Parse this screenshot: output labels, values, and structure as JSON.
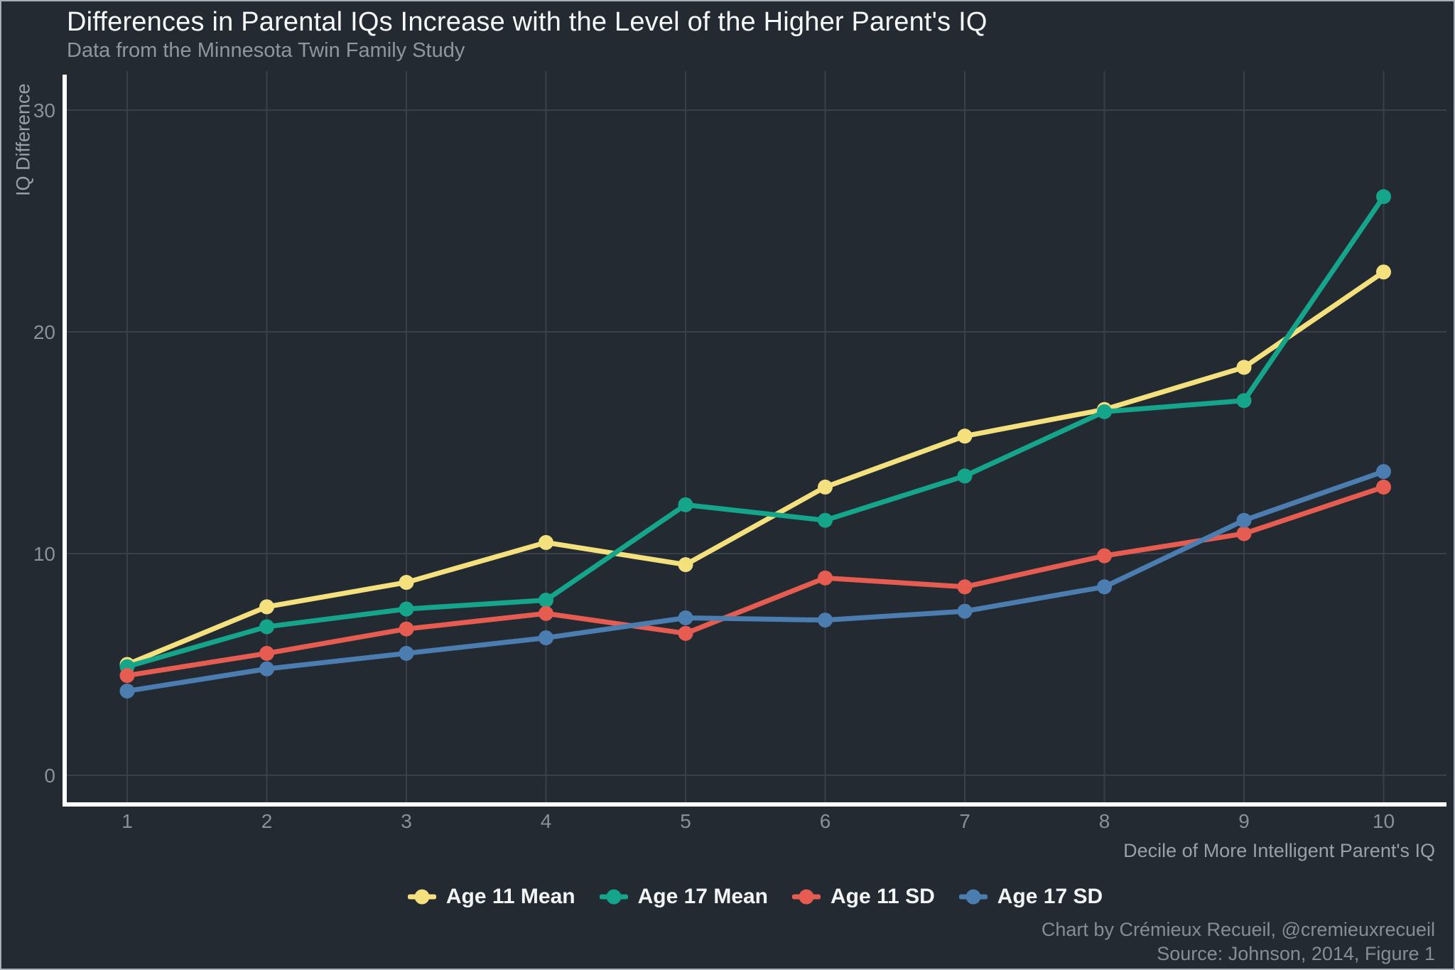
{
  "figure": {
    "title": "Differences in Parental IQs Increase with the Level of the Higher Parent's IQ",
    "subtitle": "Data from the Minnesota Twin Family Study",
    "caption_line1": "Chart by Crémieux Recueil, @cremieuxrecueil",
    "caption_line2": "Source: Johnson, 2014, Figure 1"
  },
  "colors": {
    "background": "#242A32",
    "border": "#A8AFB7",
    "axis_line": "#FFFFFF",
    "gridline": "#394049",
    "tick_label": "#8A9199",
    "axis_title": "#99A0A8",
    "title": "#F7F8F9",
    "subtitle": "#8F969E",
    "legend_text": "#F2F4F6",
    "caption": "#868D95"
  },
  "chart_data": {
    "type": "line",
    "title": "Differences in Parental IQs Increase with the Level of the Higher Parent's IQ",
    "subtitle": "Data from the Minnesota Twin Family Study",
    "xlabel": "Decile of More Intelligent Parent's IQ",
    "ylabel": "IQ Difference",
    "x": [
      1,
      2,
      3,
      4,
      5,
      6,
      7,
      8,
      9,
      10
    ],
    "xticks": [
      1,
      2,
      3,
      4,
      5,
      6,
      7,
      8,
      9,
      10
    ],
    "yticks": [
      0,
      10,
      20,
      30
    ],
    "xlim": [
      0.55,
      10.45
    ],
    "ylim": [
      -1.2,
      31.8
    ],
    "grid": true,
    "legend_position": "bottom-center",
    "marker": "circle",
    "series": [
      {
        "name": "Age 11 Mean",
        "color": "#F5E07E",
        "values": [
          5.0,
          7.6,
          8.7,
          10.5,
          9.5,
          13.0,
          15.3,
          16.5,
          18.4,
          22.7
        ]
      },
      {
        "name": "Age 17 Mean",
        "color": "#14A58B",
        "values": [
          4.9,
          6.7,
          7.5,
          7.9,
          12.2,
          11.5,
          13.5,
          16.4,
          16.9,
          26.1
        ]
      },
      {
        "name": "Age 11 SD",
        "color": "#E65C51",
        "values": [
          4.5,
          5.5,
          6.6,
          7.3,
          6.4,
          8.9,
          8.5,
          9.9,
          10.9,
          13.0
        ]
      },
      {
        "name": "Age 17 SD",
        "color": "#4C7DB0",
        "values": [
          3.8,
          4.8,
          5.5,
          6.2,
          7.1,
          7.0,
          7.4,
          8.5,
          11.5,
          13.7
        ]
      }
    ]
  }
}
